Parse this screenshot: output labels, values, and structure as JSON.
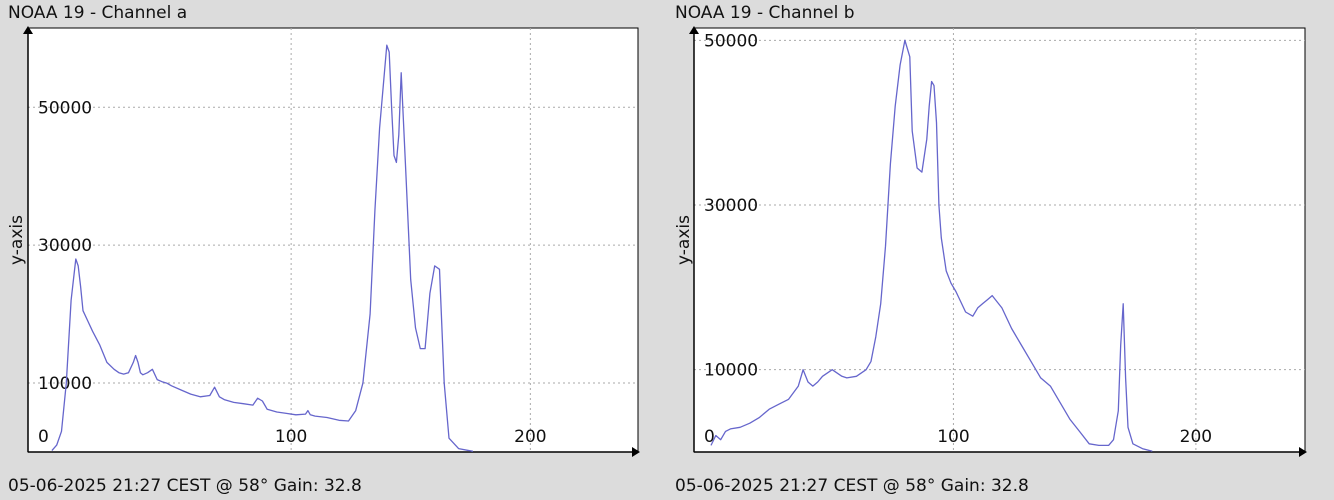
{
  "charts": [
    {
      "title": "NOAA 19 - Channel a",
      "footer": "05-06-2025 21:27 CEST @ 58° Gain: 32.8"
    },
    {
      "title": "NOAA 19 - Channel b",
      "footer": "05-06-2025 21:27 CEST @ 58° Gain: 32.8"
    }
  ],
  "chart_data": [
    {
      "type": "line",
      "title": "NOAA 19 - Channel a",
      "xlabel": "",
      "ylabel": "y-axis",
      "xlim": [
        -10,
        245
      ],
      "ylim": [
        0,
        61500
      ],
      "xticks": [
        0,
        100,
        200
      ],
      "yticks": [
        0,
        10000,
        30000,
        50000
      ],
      "grid": true,
      "colors": {
        "line": "#6666cc",
        "grid": "#aaaaaa",
        "axis": "#000000",
        "plot_bg": "#ffffff"
      },
      "series": [
        {
          "x": [
            0,
            2,
            4,
            6,
            8,
            10,
            11,
            12,
            13,
            15,
            17,
            20,
            23,
            26,
            28,
            30,
            32,
            34,
            35,
            36,
            37,
            38,
            40,
            42,
            44,
            46,
            48,
            50,
            54,
            58,
            62,
            66,
            68,
            70,
            72,
            76,
            80,
            84,
            86,
            88,
            90,
            94,
            98,
            102,
            106,
            107,
            108,
            110,
            115,
            120,
            124,
            127,
            130,
            133,
            135,
            137,
            139,
            140,
            141,
            142,
            143,
            144,
            145,
            146,
            148,
            150,
            152,
            154,
            156,
            157,
            158,
            159,
            160,
            162,
            164,
            166,
            170,
            176
          ],
          "y": [
            200,
            1000,
            3000,
            10000,
            22000,
            28000,
            27000,
            24000,
            20500,
            19000,
            17500,
            15500,
            13000,
            12000,
            11500,
            11300,
            11500,
            13000,
            14000,
            13000,
            11500,
            11200,
            11500,
            12000,
            10500,
            10200,
            10000,
            9600,
            9000,
            8400,
            8000,
            8200,
            9400,
            8000,
            7600,
            7200,
            7000,
            6800,
            7800,
            7400,
            6200,
            5800,
            5600,
            5400,
            5500,
            6000,
            5400,
            5200,
            5000,
            4600,
            4500,
            6000,
            10000,
            20000,
            35000,
            47000,
            55000,
            59000,
            58000,
            50000,
            43000,
            42000,
            46000,
            55000,
            40000,
            25000,
            18000,
            15000,
            15000,
            19000,
            23000,
            25000,
            27000,
            26500,
            10000,
            2000,
            500,
            100
          ]
        }
      ]
    },
    {
      "type": "line",
      "title": "NOAA 19 - Channel b",
      "xlabel": "",
      "ylabel": "y-axis",
      "xlim": [
        -7,
        245
      ],
      "ylim": [
        0,
        51500
      ],
      "xticks": [
        0,
        100,
        200
      ],
      "yticks": [
        0,
        10000,
        30000,
        50000
      ],
      "grid": true,
      "colors": {
        "line": "#6666cc",
        "grid": "#aaaaaa",
        "axis": "#000000",
        "plot_bg": "#ffffff"
      },
      "series": [
        {
          "x": [
            0,
            2,
            4,
            6,
            8,
            12,
            16,
            20,
            24,
            28,
            32,
            36,
            38,
            40,
            42,
            44,
            46,
            50,
            54,
            56,
            60,
            64,
            66,
            68,
            70,
            72,
            74,
            76,
            78,
            80,
            82,
            83,
            85,
            87,
            89,
            90,
            91,
            92,
            93,
            94,
            95,
            97,
            99,
            101,
            105,
            108,
            110,
            112,
            114,
            116,
            120,
            124,
            128,
            132,
            136,
            140,
            144,
            148,
            152,
            156,
            160,
            164,
            166,
            168,
            169,
            170,
            171,
            172,
            174,
            178,
            182
          ],
          "y": [
            800,
            2000,
            1500,
            2500,
            2800,
            3000,
            3500,
            4200,
            5200,
            5800,
            6400,
            8000,
            10000,
            8500,
            8000,
            8500,
            9200,
            10000,
            9200,
            9000,
            9200,
            10000,
            11000,
            14000,
            18000,
            25000,
            35000,
            42000,
            47000,
            50000,
            48000,
            39000,
            34500,
            34000,
            38000,
            42000,
            45000,
            44500,
            40000,
            30000,
            26000,
            22000,
            20500,
            19500,
            17000,
            16500,
            17500,
            18000,
            18500,
            19000,
            17500,
            15000,
            13000,
            11000,
            9000,
            8000,
            6000,
            4000,
            2500,
            1000,
            800,
            800,
            1500,
            5000,
            13000,
            18000,
            9000,
            3000,
            1000,
            400,
            100
          ]
        }
      ]
    }
  ]
}
